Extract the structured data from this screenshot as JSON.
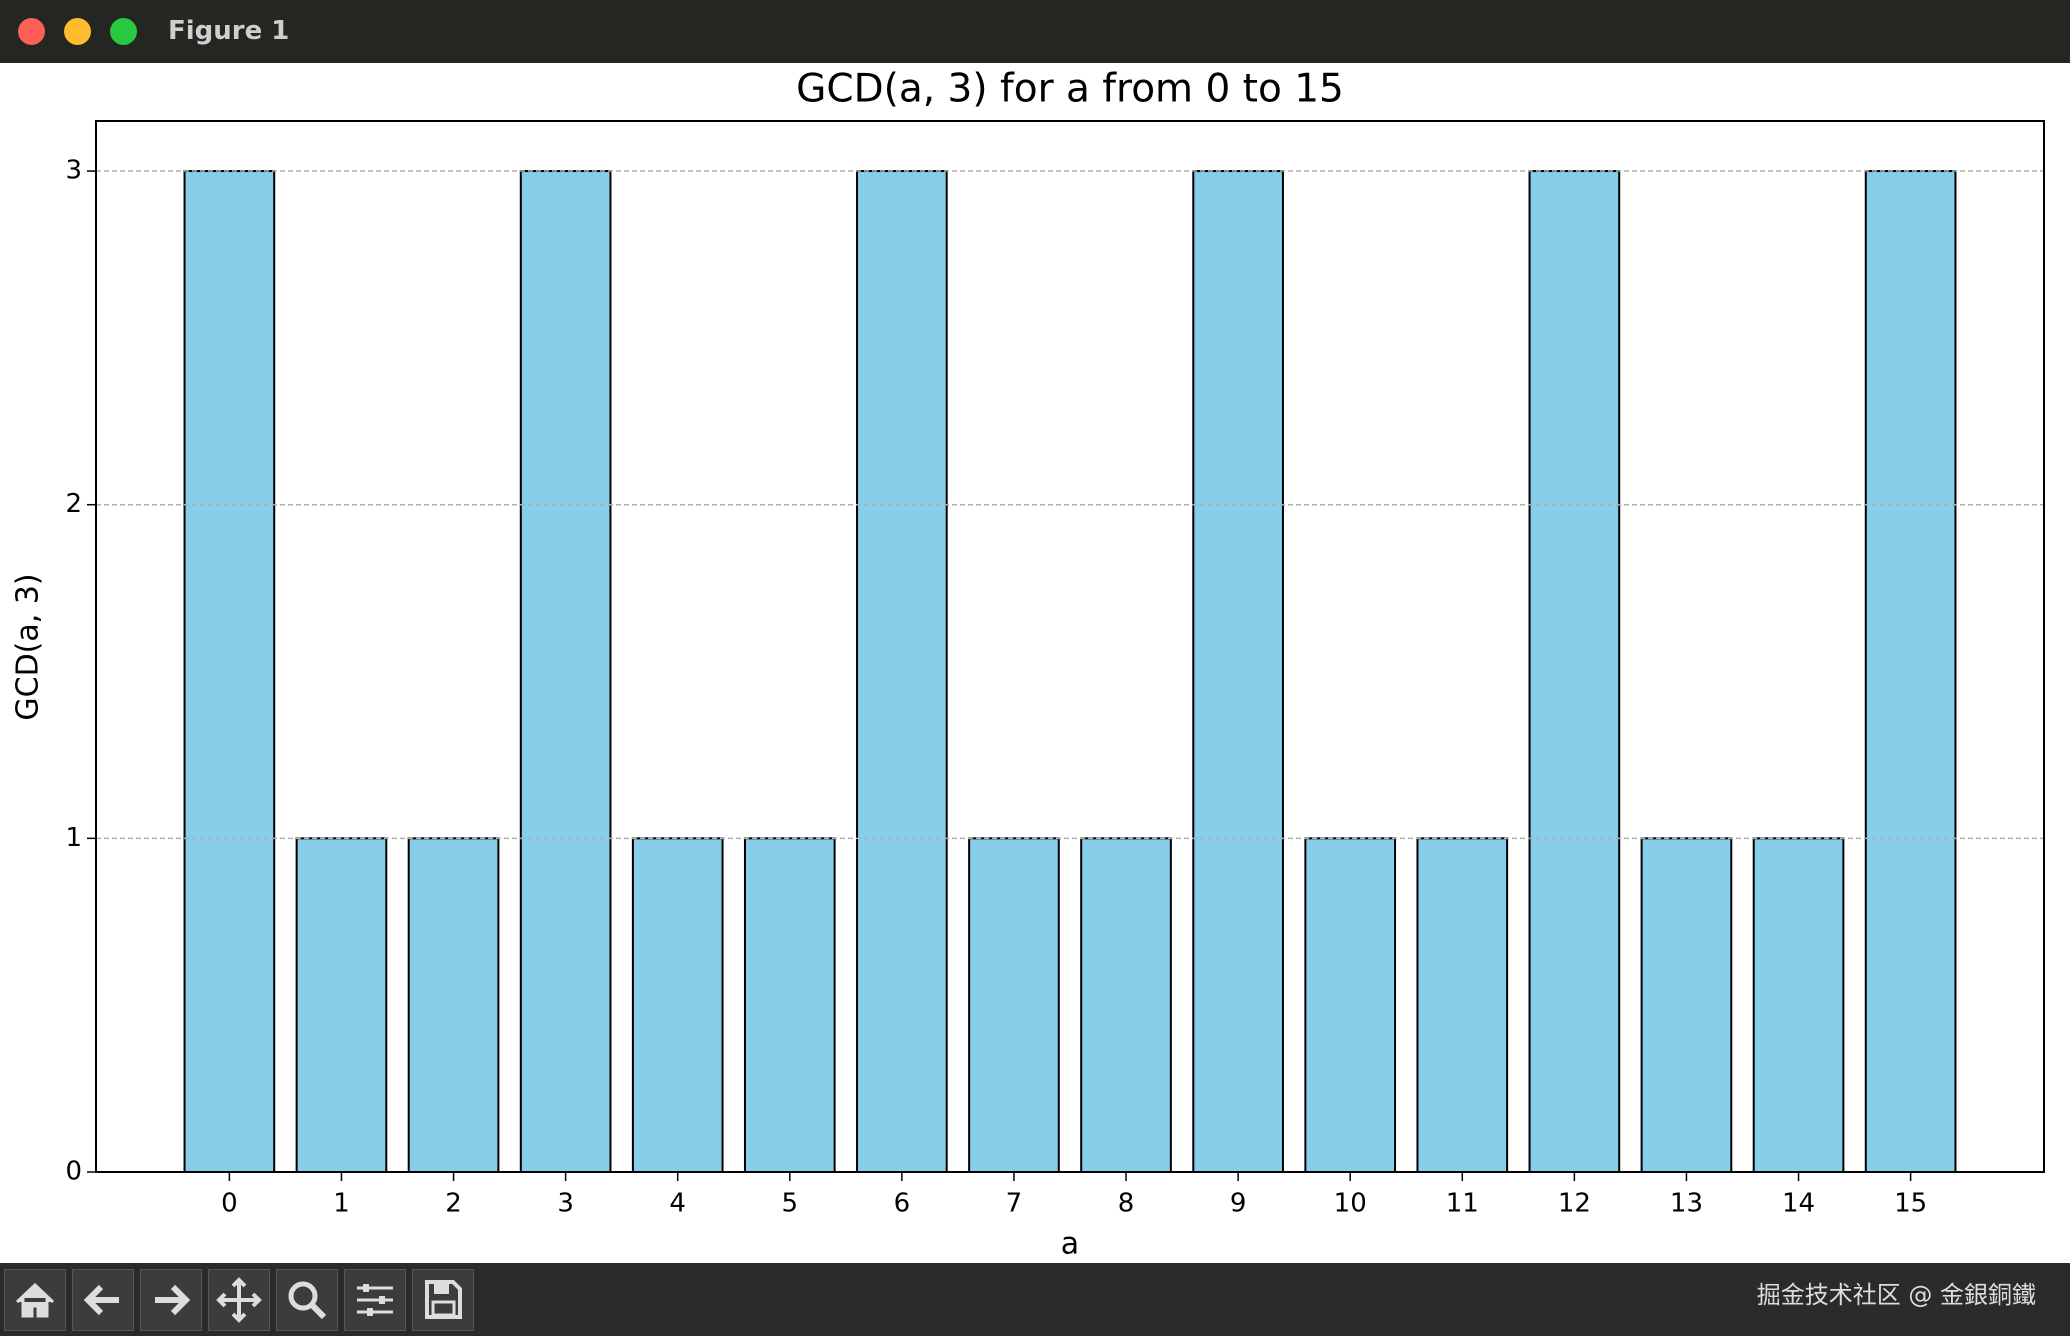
{
  "window_title": "Figure 1",
  "watermark": "掘金技术社区 @ 金銀銅鐵",
  "chart_data": {
    "type": "bar",
    "title": "GCD(a, 3) for a from 0 to 15",
    "xlabel": "a",
    "ylabel": "GCD(a, 3)",
    "x": [
      0,
      1,
      2,
      3,
      4,
      5,
      6,
      7,
      8,
      9,
      10,
      11,
      12,
      13,
      14,
      15
    ],
    "values": [
      3,
      1,
      1,
      3,
      1,
      1,
      3,
      1,
      1,
      3,
      1,
      1,
      3,
      1,
      1,
      3
    ],
    "color": "#87ceeb",
    "edgecolor": "#000000",
    "xlim": [
      -1.19,
      16.19
    ],
    "ylim": [
      0,
      3.15
    ],
    "yticks": [
      0,
      1,
      2,
      3
    ],
    "grid": true
  }
}
